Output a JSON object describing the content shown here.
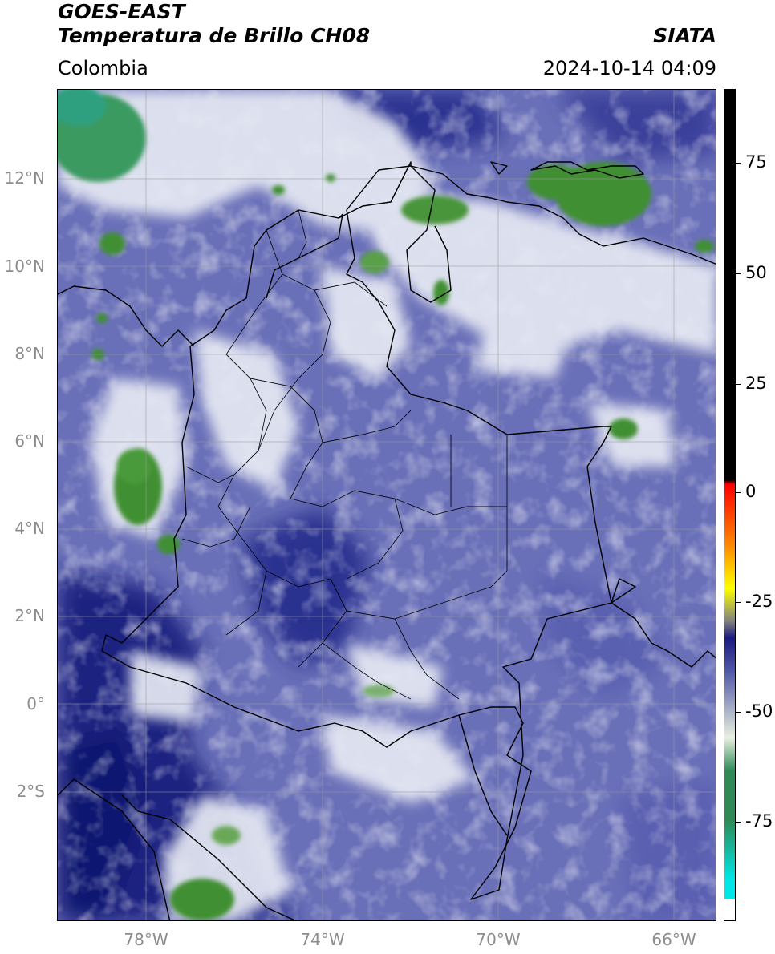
{
  "header": {
    "satellite": "GOES-EAST",
    "product": "Temperatura de Brillo CH08",
    "source": "SIATA",
    "region": "Colombia",
    "datetime": "2024-10-14 04:09"
  },
  "map": {
    "latitude_labels": [
      "12°N",
      "10°N",
      "8°N",
      "6°N",
      "4°N",
      "2°N",
      "0°",
      "2°S"
    ],
    "longitude_labels": [
      "78°W",
      "74°W",
      "70°W",
      "66°W"
    ],
    "colors": {
      "cold_cloud_green": "#3a8a2a",
      "cloud_white": "#eef0f4",
      "mid_blue": "#6a70b8",
      "deep_blue": "#141e7a",
      "border": "#000000"
    }
  },
  "colorbar": {
    "tick_labels": [
      "75",
      "50",
      "25",
      "0",
      "-25",
      "-50",
      "-75"
    ],
    "range": [
      -95,
      90
    ],
    "colors": [
      "#ffffff",
      "#00e5e5",
      "#2e8b57",
      "#e8f0e0",
      "#5058a8",
      "#1a1a80",
      "#808080",
      "#ffff00",
      "#ff8c00",
      "#ff0000",
      "#000000"
    ]
  }
}
